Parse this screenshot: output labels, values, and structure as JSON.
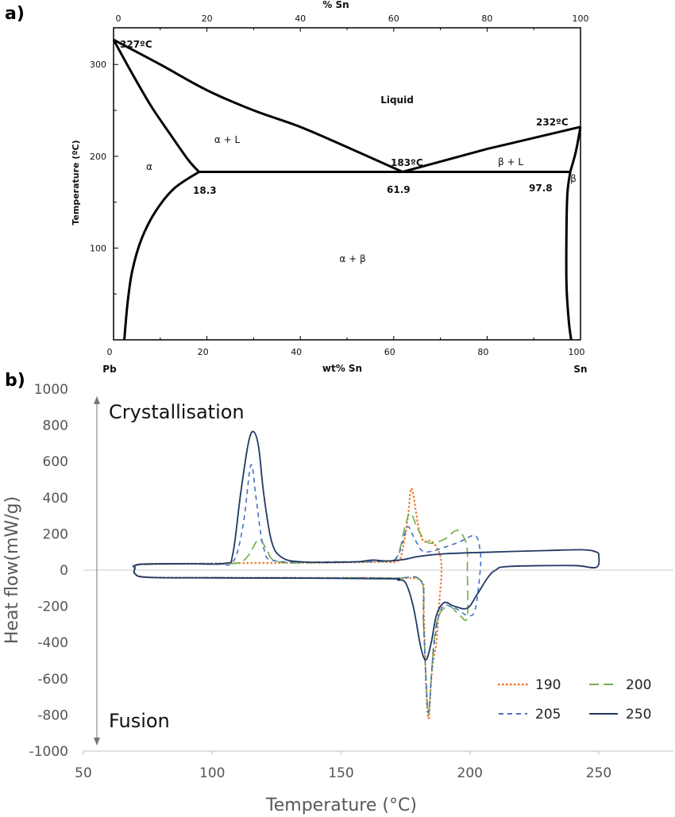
{
  "chart_data": [
    {
      "panel": "a)",
      "type": "line",
      "top_axis_label": "% Sn",
      "top_ticks": [
        "0",
        "20",
        "40",
        "60",
        "80",
        "100"
      ],
      "xlabel": "wt% Sn",
      "xticks": [
        "0",
        "20",
        "40",
        "60",
        "80",
        "100"
      ],
      "xlim": [
        0,
        100
      ],
      "ylabel": "Temperature (ºC)",
      "yticks": [
        "100",
        "200",
        "300"
      ],
      "ylim": [
        0,
        340
      ],
      "x_end_labels": [
        "Pb",
        "Sn"
      ],
      "regions": [
        "Liquid",
        "α + L",
        "α",
        "β + L",
        "β",
        "α + β"
      ],
      "annotations": [
        {
          "text": "327ºC",
          "x": 0,
          "y": 327
        },
        {
          "text": "232ºC",
          "x": 100,
          "y": 232
        },
        {
          "text": "183ºC",
          "x": 61.9,
          "y": 183
        },
        {
          "text": "18.3",
          "x": 18.3,
          "y": 183
        },
        {
          "text": "61.9",
          "x": 61.9,
          "y": 183
        },
        {
          "text": "97.8",
          "x": 97.8,
          "y": 183
        }
      ],
      "phase_lines": [
        {
          "name": "liquidus-left",
          "points": [
            [
              0,
              327
            ],
            [
              10,
              300
            ],
            [
              20,
              272
            ],
            [
              30,
              250
            ],
            [
              40,
              232
            ],
            [
              50,
              210
            ],
            [
              61.9,
              183
            ]
          ]
        },
        {
          "name": "liquidus-right",
          "points": [
            [
              61.9,
              183
            ],
            [
              80,
              208
            ],
            [
              100,
              232
            ]
          ]
        },
        {
          "name": "solidus-left",
          "points": [
            [
              0,
              327
            ],
            [
              4,
              290
            ],
            [
              8,
              255
            ],
            [
              12,
              225
            ],
            [
              16,
              196
            ],
            [
              18.3,
              183
            ]
          ]
        },
        {
          "name": "eutectic",
          "points": [
            [
              18.3,
              183
            ],
            [
              97.8,
              183
            ]
          ]
        },
        {
          "name": "solvus-left",
          "points": [
            [
              18.3,
              183
            ],
            [
              13,
              165
            ],
            [
              9,
              140
            ],
            [
              6,
              110
            ],
            [
              4,
              75
            ],
            [
              3,
              40
            ],
            [
              2.3,
              0
            ]
          ]
        },
        {
          "name": "solidus-right",
          "points": [
            [
              97.8,
              183
            ],
            [
              99,
              205
            ],
            [
              100,
              232
            ]
          ]
        },
        {
          "name": "solvus-right",
          "points": [
            [
              97.8,
              183
            ],
            [
              97.2,
              160
            ],
            [
              97,
              120
            ],
            [
              97,
              60
            ],
            [
              97.5,
              20
            ],
            [
              98,
              0
            ]
          ]
        }
      ]
    },
    {
      "panel": "b)",
      "type": "line",
      "xlabel": "Temperature (°C)",
      "ylabel": "Heat flow(mW/g)",
      "xlim": [
        50,
        290
      ],
      "xticks": [
        "50",
        "100",
        "150",
        "200",
        "250"
      ],
      "ylim": [
        -1000,
        1000
      ],
      "yticks": [
        "-1000",
        "-800",
        "-600",
        "-400",
        "-200",
        "0",
        "200",
        "400",
        "600",
        "800",
        "1000"
      ],
      "annotations": [
        "Crystallisation",
        "Fusion"
      ],
      "series": [
        {
          "name": "190",
          "color": "#ED7D31",
          "dash": "2,4",
          "points": [
            [
              70,
              10
            ],
            [
              72,
              30
            ],
            [
              90,
              35
            ],
            [
              110,
              38
            ],
            [
              130,
              40
            ],
            [
              150,
              42
            ],
            [
              165,
              45
            ],
            [
              172,
              50
            ],
            [
              174,
              120
            ],
            [
              176,
              300
            ],
            [
              177,
              440
            ],
            [
              178,
              420
            ],
            [
              180,
              240
            ],
            [
              182,
              160
            ],
            [
              185,
              160
            ],
            [
              188,
              100
            ],
            [
              189,
              0
            ],
            [
              188,
              -200
            ],
            [
              187,
              -400
            ],
            [
              186,
              -480
            ],
            [
              185,
              -600
            ],
            [
              184,
              -820
            ],
            [
              183,
              -650
            ],
            [
              182,
              -200
            ],
            [
              181,
              -60
            ],
            [
              170,
              -45
            ],
            [
              140,
              -43
            ],
            [
              100,
              -42
            ],
            [
              75,
              -40
            ],
            [
              70,
              -20
            ],
            [
              70,
              10
            ]
          ]
        },
        {
          "name": "200",
          "color": "#70AD47",
          "dash": "12,6",
          "points": [
            [
              70,
              10
            ],
            [
              72,
              30
            ],
            [
              100,
              35
            ],
            [
              110,
              40
            ],
            [
              114,
              80
            ],
            [
              118,
              170
            ],
            [
              121,
              120
            ],
            [
              126,
              45
            ],
            [
              150,
              45
            ],
            [
              168,
              50
            ],
            [
              172,
              80
            ],
            [
              175,
              250
            ],
            [
              177,
              315
            ],
            [
              180,
              220
            ],
            [
              184,
              150
            ],
            [
              190,
              170
            ],
            [
              195,
              220
            ],
            [
              198,
              170
            ],
            [
              199,
              100
            ],
            [
              199,
              0
            ],
            [
              199,
              -260
            ],
            [
              196,
              -250
            ],
            [
              192,
              -200
            ],
            [
              188,
              -250
            ],
            [
              186,
              -400
            ],
            [
              184,
              -790
            ],
            [
              183,
              -600
            ],
            [
              182,
              -300
            ],
            [
              181,
              -60
            ],
            [
              170,
              -45
            ],
            [
              140,
              -43
            ],
            [
              100,
              -42
            ],
            [
              75,
              -40
            ],
            [
              70,
              -20
            ],
            [
              70,
              10
            ]
          ]
        },
        {
          "name": "205",
          "color": "#4472C4",
          "dash": "6,5",
          "points": [
            [
              70,
              10
            ],
            [
              72,
              32
            ],
            [
              100,
              36
            ],
            [
              108,
              45
            ],
            [
              112,
              250
            ],
            [
              115,
              580
            ],
            [
              117,
              400
            ],
            [
              120,
              120
            ],
            [
              125,
              50
            ],
            [
              150,
              46
            ],
            [
              168,
              50
            ],
            [
              172,
              80
            ],
            [
              174,
              160
            ],
            [
              176,
              240
            ],
            [
              179,
              160
            ],
            [
              183,
              100
            ],
            [
              195,
              150
            ],
            [
              202,
              190
            ],
            [
              204,
              100
            ],
            [
              204,
              0
            ],
            [
              202,
              -220
            ],
            [
              199,
              -250
            ],
            [
              194,
              -210
            ],
            [
              189,
              -210
            ],
            [
              186,
              -420
            ],
            [
              184,
              -780
            ],
            [
              183,
              -620
            ],
            [
              182,
              -300
            ],
            [
              181,
              -60
            ],
            [
              170,
              -45
            ],
            [
              140,
              -43
            ],
            [
              100,
              -42
            ],
            [
              75,
              -40
            ],
            [
              70,
              -20
            ],
            [
              70,
              10
            ]
          ]
        },
        {
          "name": "250",
          "color": "#203864",
          "dash": "",
          "points": [
            [
              70,
              10
            ],
            [
              72,
              32
            ],
            [
              90,
              35
            ],
            [
              105,
              37
            ],
            [
              108,
              90
            ],
            [
              111,
              420
            ],
            [
              114,
              700
            ],
            [
              116,
              765
            ],
            [
              118,
              680
            ],
            [
              120,
              420
            ],
            [
              123,
              160
            ],
            [
              127,
              70
            ],
            [
              135,
              45
            ],
            [
              155,
              45
            ],
            [
              162,
              55
            ],
            [
              168,
              50
            ],
            [
              175,
              60
            ],
            [
              180,
              75
            ],
            [
              190,
              90
            ],
            [
              210,
              100
            ],
            [
              230,
              108
            ],
            [
              244,
              112
            ],
            [
              249,
              100
            ],
            [
              250,
              80
            ],
            [
              249,
              15
            ],
            [
              240,
              25
            ],
            [
              215,
              20
            ],
            [
              210,
              0
            ],
            [
              207,
              -40
            ],
            [
              203,
              -130
            ],
            [
              199,
              -210
            ],
            [
              194,
              -200
            ],
            [
              190,
              -180
            ],
            [
              187,
              -250
            ],
            [
              185,
              -400
            ],
            [
              183,
              -495
            ],
            [
              181,
              -430
            ],
            [
              178,
              -200
            ],
            [
              175,
              -70
            ],
            [
              172,
              -55
            ],
            [
              170,
              -48
            ],
            [
              140,
              -45
            ],
            [
              100,
              -43
            ],
            [
              75,
              -40
            ],
            [
              70,
              -20
            ],
            [
              70,
              10
            ]
          ]
        }
      ],
      "legend_placement": "bottom-right"
    }
  ]
}
